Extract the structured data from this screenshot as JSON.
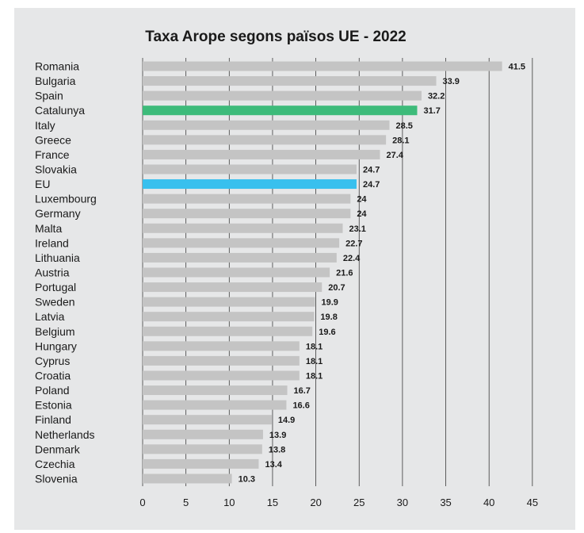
{
  "chart_data": {
    "type": "bar",
    "orientation": "horizontal",
    "title": "Taxa Arope segons països UE - 2022",
    "xlabel": "",
    "ylabel": "",
    "xlim": [
      0,
      45
    ],
    "xticks": [
      0,
      5,
      10,
      15,
      20,
      25,
      30,
      35,
      40,
      45
    ],
    "xtick_labels": [
      "0",
      "5",
      "10",
      "15",
      "20",
      "25",
      "30",
      "35",
      "40",
      "45"
    ],
    "grid": "vertical",
    "categories": [
      "Romania",
      "Bulgaria",
      "Spain",
      "Catalunya",
      "Italy",
      "Greece",
      "France",
      "Slovakia",
      "EU",
      "Luxembourg",
      "Germany",
      "Malta",
      "Ireland",
      "Lithuania",
      "Austria",
      "Portugal",
      "Sweden",
      "Latvia",
      "Belgium",
      "Hungary",
      "Cyprus",
      "Croatia",
      "Poland",
      "Estonia",
      "Finland",
      "Netherlands",
      "Denmark",
      "Czechia",
      "Slovenia"
    ],
    "values": [
      41.5,
      33.9,
      32.2,
      31.7,
      28.5,
      28.1,
      27.4,
      24.7,
      24.7,
      24,
      24,
      23.1,
      22.7,
      22.4,
      21.6,
      20.7,
      19.9,
      19.8,
      19.6,
      18.1,
      18.1,
      18.1,
      16.7,
      16.6,
      14.9,
      13.9,
      13.8,
      13.4,
      10.3
    ],
    "value_labels": [
      "41.5",
      "33.9",
      "32.2",
      "31.7",
      "28.5",
      "28.1",
      "27.4",
      "24.7",
      "24.7",
      "24",
      "24",
      "23.1",
      "22.7",
      "22.4",
      "21.6",
      "20.7",
      "19.9",
      "19.8",
      "19.6",
      "18.1",
      "18.1",
      "18.1",
      "16.7",
      "16.6",
      "14.9",
      "13.9",
      "13.8",
      "13.4",
      "10.3"
    ],
    "colors": {
      "default": "#c4c4c4",
      "highlights": {
        "Catalunya": "#3dbb7a",
        "EU": "#38c0ee"
      },
      "grid": "#3a3a3a",
      "background": "#e6e7e8"
    }
  }
}
